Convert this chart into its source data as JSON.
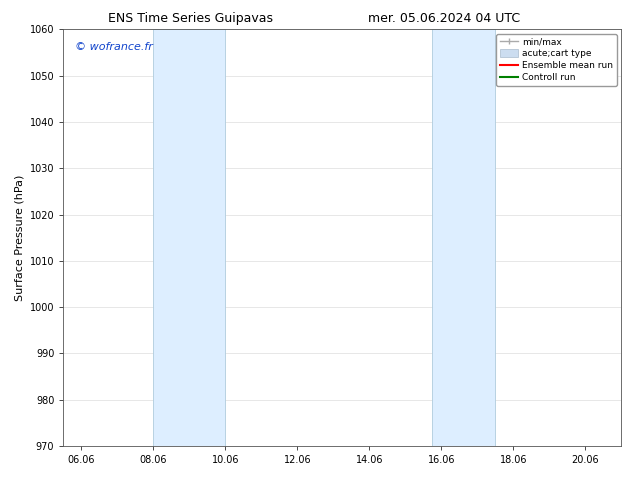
{
  "title_left": "ENS Time Series Guipavas",
  "title_right": "mer. 05.06.2024 04 UTC",
  "ylabel": "Surface Pressure (hPa)",
  "ylim": [
    970,
    1060
  ],
  "yticks": [
    970,
    980,
    990,
    1000,
    1010,
    1020,
    1030,
    1040,
    1050,
    1060
  ],
  "xlim_start": 5.5,
  "xlim_end": 21.0,
  "xtick_labels": [
    "06.06",
    "08.06",
    "10.06",
    "12.06",
    "14.06",
    "16.06",
    "18.06",
    "20.06"
  ],
  "xtick_positions": [
    6.0,
    8.0,
    10.0,
    12.0,
    14.0,
    16.0,
    18.0,
    20.0
  ],
  "shaded_regions": [
    {
      "xmin": 8.0,
      "xmax": 10.0
    },
    {
      "xmin": 15.75,
      "xmax": 17.5
    }
  ],
  "shaded_color": "#ddeeff",
  "shaded_edge_color": "#b0ccdd",
  "watermark": "© wofrance.fr",
  "watermark_color": "#1144cc",
  "legend_entries": [
    {
      "label": "min/max",
      "color": "#aaaaaa",
      "lw": 1.0,
      "type": "errorbar"
    },
    {
      "label": "acute;cart type",
      "color": "#ccddf0",
      "lw": 8,
      "type": "patch"
    },
    {
      "label": "Ensemble mean run",
      "color": "red",
      "lw": 1.5,
      "type": "line"
    },
    {
      "label": "Controll run",
      "color": "green",
      "lw": 1.5,
      "type": "line"
    }
  ],
  "bg_color": "white",
  "grid_color": "#dddddd",
  "title_fontsize": 9,
  "tick_fontsize": 7,
  "ylabel_fontsize": 8,
  "watermark_fontsize": 8,
  "legend_fontsize": 6.5
}
